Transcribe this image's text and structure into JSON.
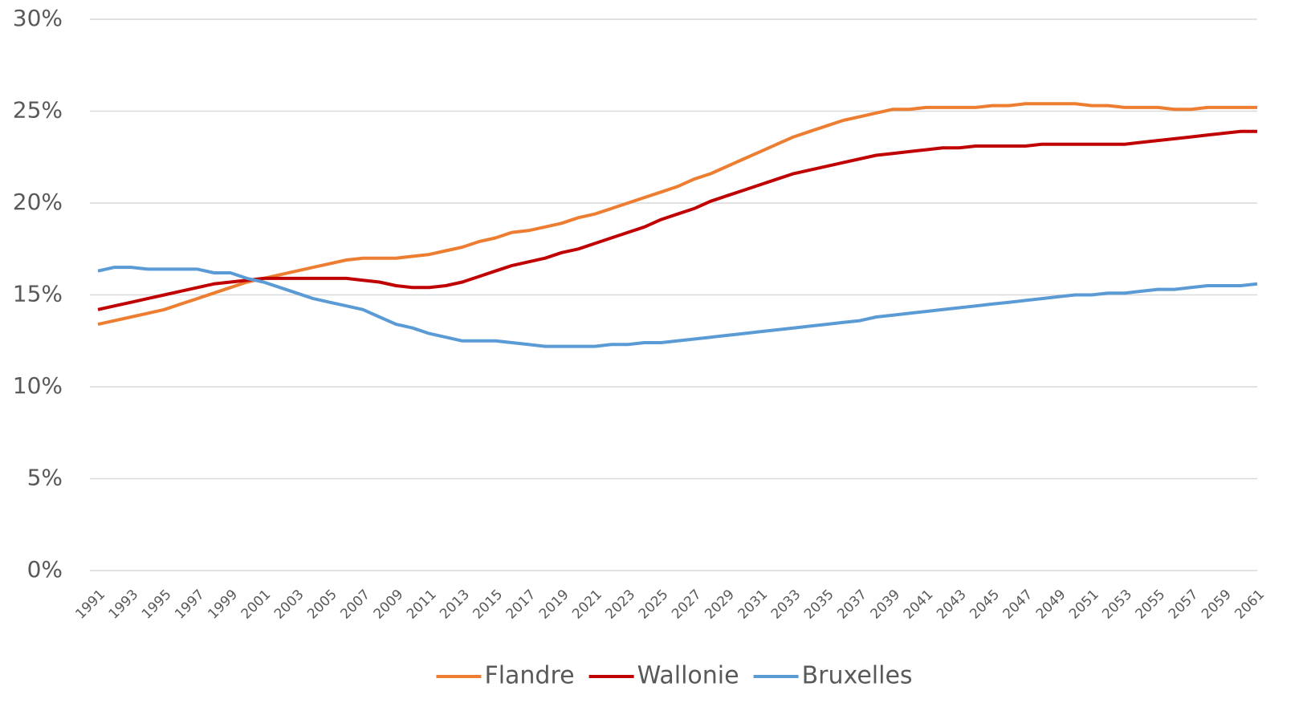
{
  "chart_data": {
    "type": "line",
    "x": [
      1991,
      1992,
      1993,
      1994,
      1995,
      1996,
      1997,
      1998,
      1999,
      2000,
      2001,
      2002,
      2003,
      2004,
      2005,
      2006,
      2007,
      2008,
      2009,
      2010,
      2011,
      2012,
      2013,
      2014,
      2015,
      2016,
      2017,
      2018,
      2019,
      2020,
      2021,
      2022,
      2023,
      2024,
      2025,
      2026,
      2027,
      2028,
      2029,
      2030,
      2031,
      2032,
      2033,
      2034,
      2035,
      2036,
      2037,
      2038,
      2039,
      2040,
      2041,
      2042,
      2043,
      2044,
      2045,
      2046,
      2047,
      2048,
      2049,
      2050,
      2051,
      2052,
      2053,
      2054,
      2055,
      2056,
      2057,
      2058,
      2059,
      2060,
      2061
    ],
    "xlim": [
      1991,
      2061
    ],
    "xticks": [
      1991,
      1993,
      1995,
      1997,
      1999,
      2001,
      2003,
      2005,
      2007,
      2009,
      2011,
      2013,
      2015,
      2017,
      2019,
      2021,
      2023,
      2025,
      2027,
      2029,
      2031,
      2033,
      2035,
      2037,
      2039,
      2041,
      2043,
      2045,
      2047,
      2049,
      2051,
      2053,
      2055,
      2057,
      2059,
      2061
    ],
    "ylim": [
      0,
      30
    ],
    "yticks": [
      {
        "value": 0,
        "label": "0%"
      },
      {
        "value": 5,
        "label": "5%"
      },
      {
        "value": 10,
        "label": "10%"
      },
      {
        "value": 15,
        "label": "15%"
      },
      {
        "value": 20,
        "label": "20%"
      },
      {
        "value": 25,
        "label": "25%"
      },
      {
        "value": 30,
        "label": "30%"
      }
    ],
    "grid": true,
    "legend": "bottom",
    "series": [
      {
        "name": "Flandre",
        "color": "#ed7d31",
        "values": [
          13.4,
          13.6,
          13.8,
          14.0,
          14.2,
          14.5,
          14.8,
          15.1,
          15.4,
          15.7,
          15.9,
          16.1,
          16.3,
          16.5,
          16.7,
          16.9,
          17.0,
          17.0,
          17.0,
          17.1,
          17.2,
          17.4,
          17.6,
          17.9,
          18.1,
          18.4,
          18.5,
          18.7,
          18.9,
          19.2,
          19.4,
          19.7,
          20.0,
          20.3,
          20.6,
          20.9,
          21.3,
          21.6,
          22.0,
          22.4,
          22.8,
          23.2,
          23.6,
          23.9,
          24.2,
          24.5,
          24.7,
          24.9,
          25.1,
          25.1,
          25.2,
          25.2,
          25.2,
          25.2,
          25.3,
          25.3,
          25.4,
          25.4,
          25.4,
          25.4,
          25.3,
          25.3,
          25.2,
          25.2,
          25.2,
          25.1,
          25.1,
          25.2,
          25.2,
          25.2,
          25.2
        ]
      },
      {
        "name": "Wallonie",
        "color": "#c00000",
        "values": [
          14.2,
          14.4,
          14.6,
          14.8,
          15.0,
          15.2,
          15.4,
          15.6,
          15.7,
          15.8,
          15.9,
          15.9,
          15.9,
          15.9,
          15.9,
          15.9,
          15.8,
          15.7,
          15.5,
          15.4,
          15.4,
          15.5,
          15.7,
          16.0,
          16.3,
          16.6,
          16.8,
          17.0,
          17.3,
          17.5,
          17.8,
          18.1,
          18.4,
          18.7,
          19.1,
          19.4,
          19.7,
          20.1,
          20.4,
          20.7,
          21.0,
          21.3,
          21.6,
          21.8,
          22.0,
          22.2,
          22.4,
          22.6,
          22.7,
          22.8,
          22.9,
          23.0,
          23.0,
          23.1,
          23.1,
          23.1,
          23.1,
          23.2,
          23.2,
          23.2,
          23.2,
          23.2,
          23.2,
          23.3,
          23.4,
          23.5,
          23.6,
          23.7,
          23.8,
          23.9,
          23.9
        ]
      },
      {
        "name": "Bruxelles",
        "color": "#5b9bd5",
        "values": [
          16.3,
          16.5,
          16.5,
          16.4,
          16.4,
          16.4,
          16.4,
          16.2,
          16.2,
          15.9,
          15.7,
          15.4,
          15.1,
          14.8,
          14.6,
          14.4,
          14.2,
          13.8,
          13.4,
          13.2,
          12.9,
          12.7,
          12.5,
          12.5,
          12.5,
          12.4,
          12.3,
          12.2,
          12.2,
          12.2,
          12.2,
          12.3,
          12.3,
          12.4,
          12.4,
          12.5,
          12.6,
          12.7,
          12.8,
          12.9,
          13.0,
          13.1,
          13.2,
          13.3,
          13.4,
          13.5,
          13.6,
          13.8,
          13.9,
          14.0,
          14.1,
          14.2,
          14.3,
          14.4,
          14.5,
          14.6,
          14.7,
          14.8,
          14.9,
          15.0,
          15.0,
          15.1,
          15.1,
          15.2,
          15.3,
          15.3,
          15.4,
          15.5,
          15.5,
          15.5,
          15.6
        ]
      }
    ]
  }
}
